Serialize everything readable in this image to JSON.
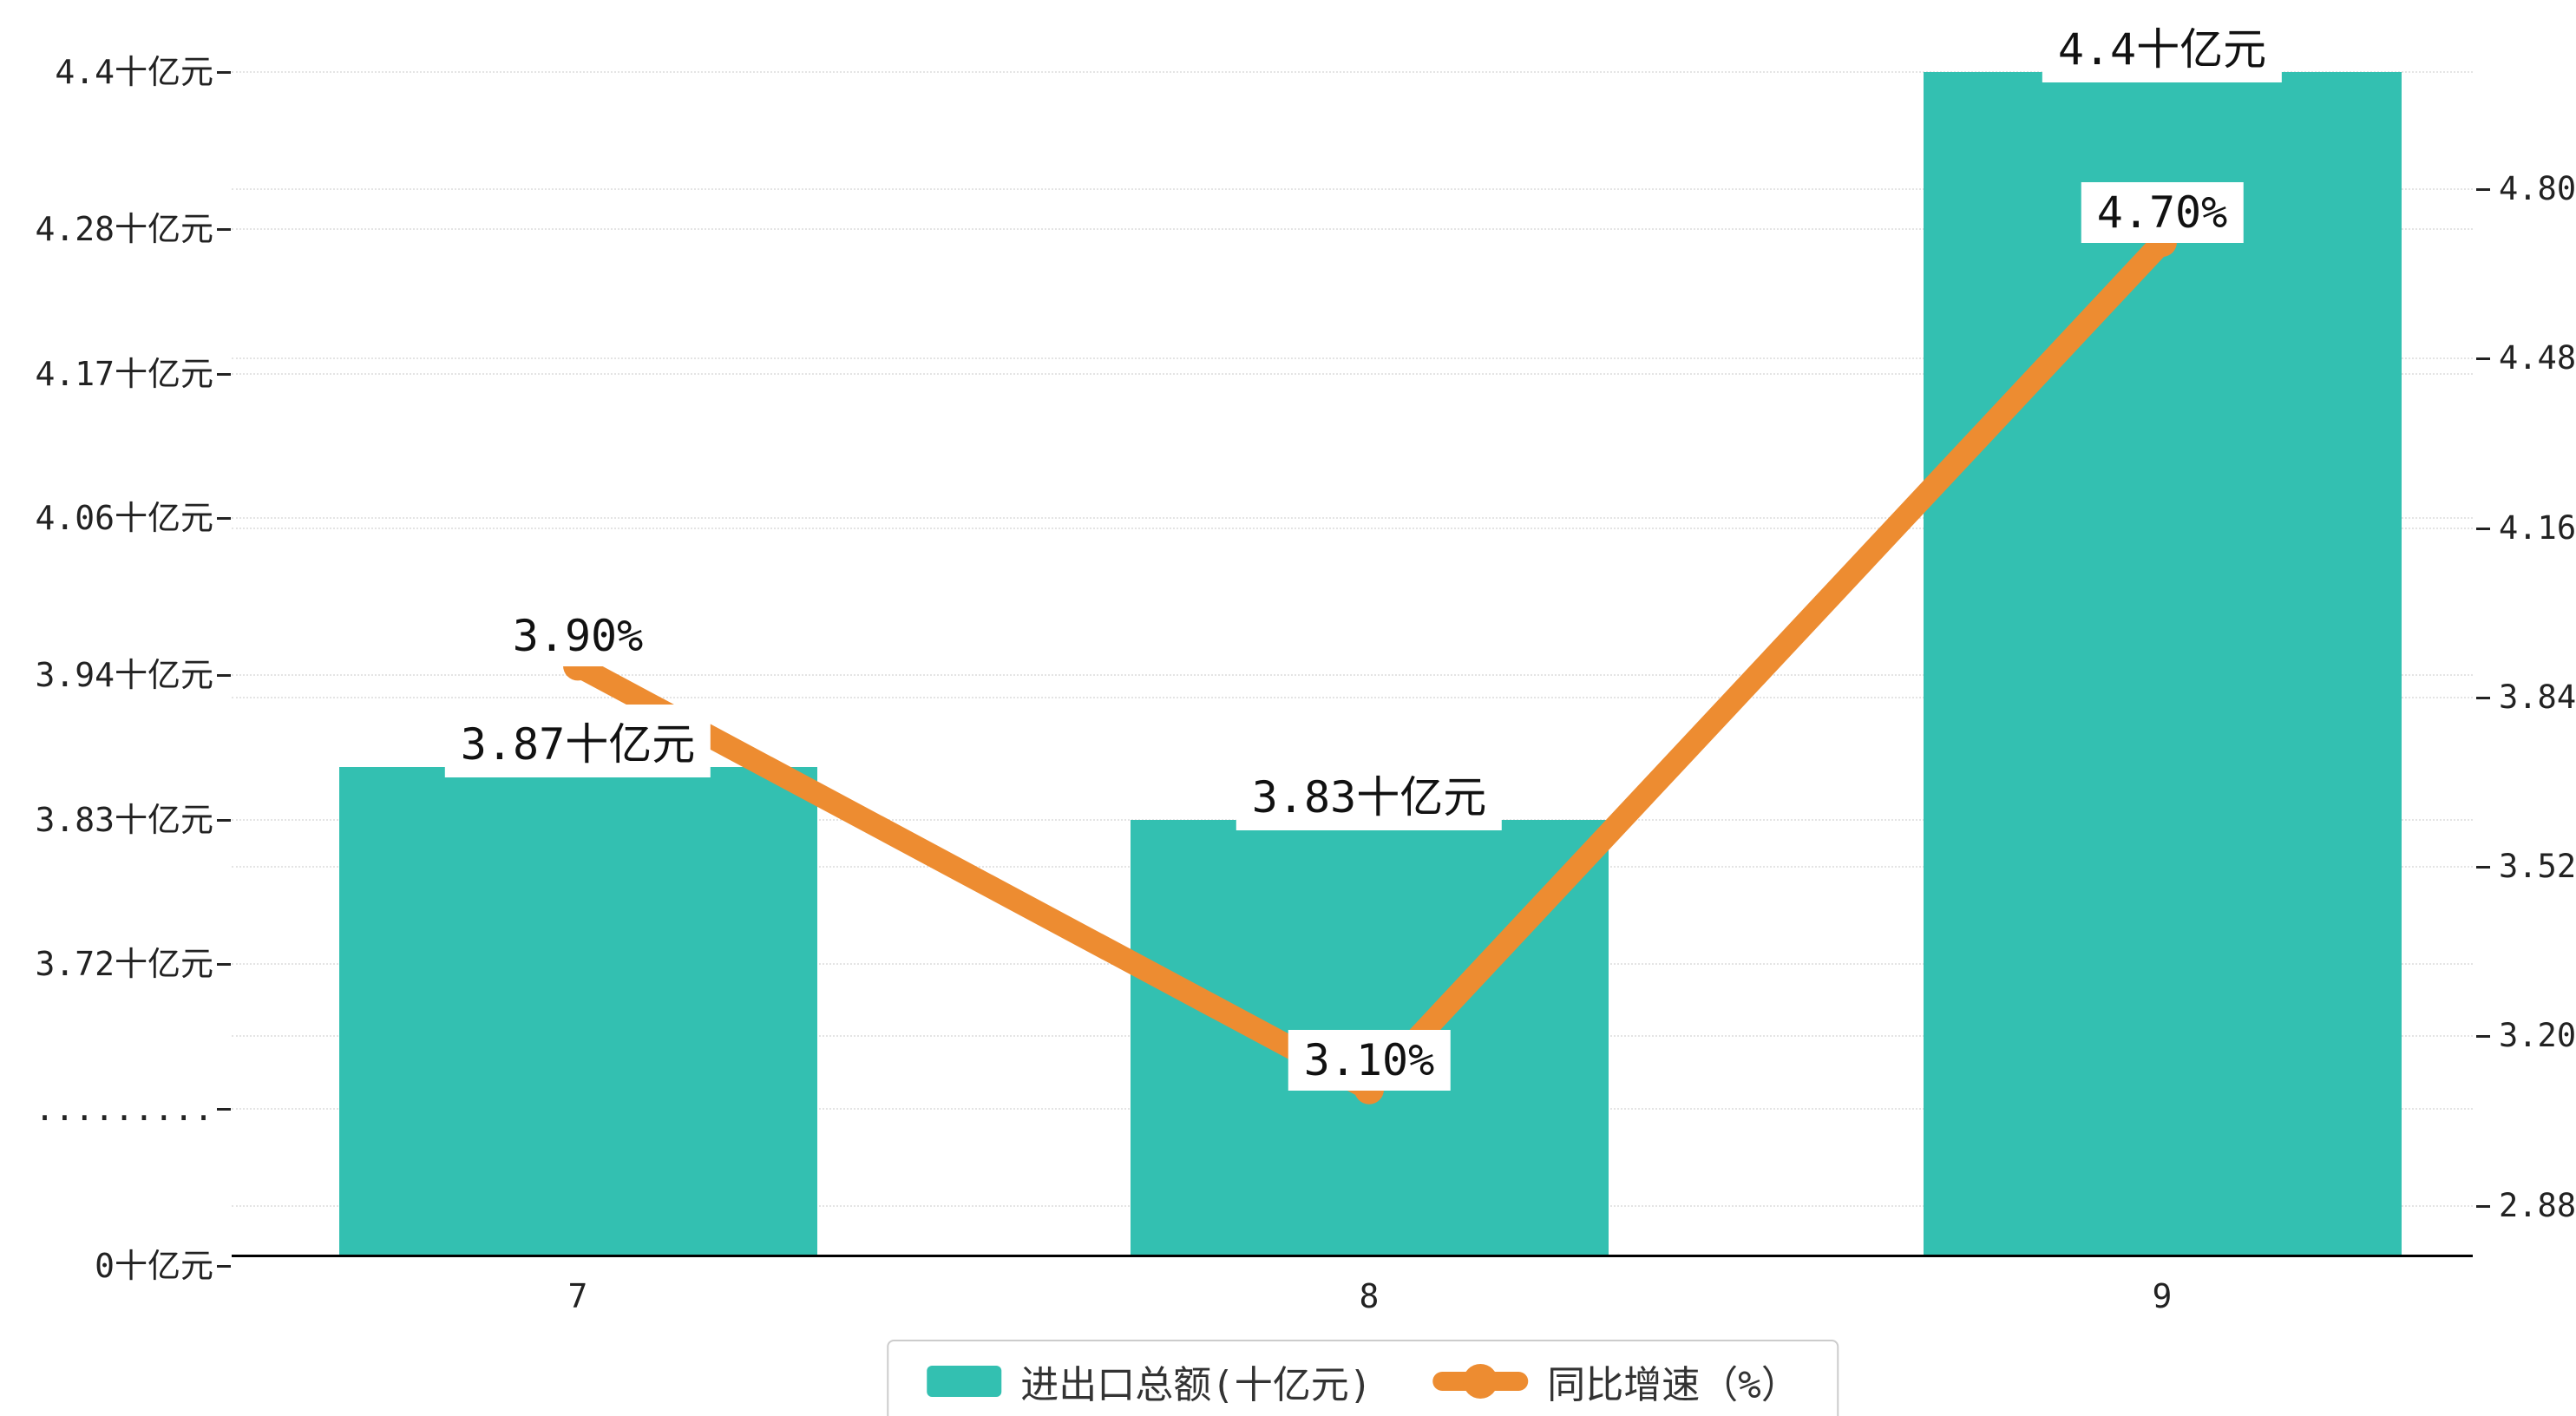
{
  "chart_data": {
    "type": "combo",
    "title": "",
    "categories": [
      "7",
      "8",
      "9"
    ],
    "series": [
      {
        "name": "进出口总额(十亿元)",
        "type": "bar",
        "axis": "left",
        "values": [
          3.87,
          3.83,
          4.4
        ],
        "data_labels": [
          "3.87十亿元",
          "3.83十亿元",
          "4.4十亿元"
        ]
      },
      {
        "name": "同比增速（%）",
        "type": "line",
        "axis": "right",
        "values": [
          3.9,
          3.1,
          4.7
        ],
        "data_labels": [
          "3.90%",
          "3.10%",
          "4.70%"
        ]
      }
    ],
    "left_axis": {
      "tick_labels": [
        "4.4十亿元",
        "4.28十亿元",
        "4.17十亿元",
        "4.06十亿元",
        "3.94十亿元",
        "3.83十亿元",
        "3.72十亿元",
        ".........",
        "0十亿元"
      ],
      "tick_values": [
        4.4,
        4.28,
        4.17,
        4.06,
        3.94,
        3.83,
        3.72,
        null,
        0
      ],
      "broken_axis": true
    },
    "right_axis": {
      "tick_labels": [
        "4.80",
        "4.48",
        "4.16",
        "3.84",
        "3.52",
        "3.20",
        "2.88"
      ],
      "tick_values": [
        4.8,
        4.48,
        4.16,
        3.84,
        3.52,
        3.2,
        2.88
      ]
    },
    "grid": true,
    "legend_position": "bottom"
  },
  "colors": {
    "bar": "#33c0b1",
    "line": "#ed8c31",
    "axis": "#000000",
    "grid": "#e4e4e4",
    "text": "#111111"
  }
}
